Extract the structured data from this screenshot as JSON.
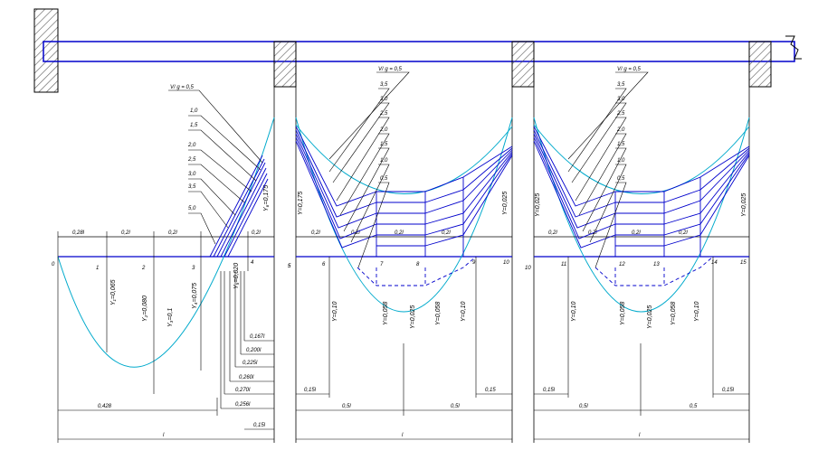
{
  "colors": {
    "structure": "#0000cc",
    "curve": "#00aacc",
    "ink": "#000000",
    "hatch": "#555555"
  },
  "panel1": {
    "top_dims": [
      "0,28l",
      "0,2l",
      "0,2l",
      "0,2l"
    ],
    "nodes": [
      "0",
      "1",
      "2",
      "3",
      "4",
      "5"
    ],
    "vertical_labels": [
      "Y₁=0,065",
      "Y₂=0,080",
      "Y₃=0,1",
      "Y₄=0,075",
      "Y₅=0,020",
      "Y₆=0,175"
    ],
    "fan_title": "V/ g = 0,5",
    "fan_values": [
      "1,0",
      "1,5",
      "2,0",
      "2,5",
      "3,0",
      "3,5",
      "5,0"
    ],
    "right_dims": [
      "0,167l",
      "0,200l",
      "0,225l",
      "0,260l",
      "0,270l",
      "0,256l",
      "0,15l"
    ],
    "bottom_dims": [
      "0,428",
      "l"
    ]
  },
  "panel2": {
    "top_dims": [
      "0,2l",
      "0,2l",
      "0,2l",
      "0,2l"
    ],
    "nodes": [
      "5",
      "6",
      "7",
      "8",
      "9",
      "10"
    ],
    "vertical_labels": [
      "Y=0,175",
      "Y=0,10",
      "Y=0,058",
      "Y=0,025",
      "Y=0,058",
      "Y=0,10",
      "Y=0,025"
    ],
    "fan_title": "V/ g = 0,5",
    "fan_values": [
      "3,5",
      "3,0",
      "2,5",
      "2,0",
      "1,5",
      "1,0",
      "0,5"
    ],
    "bottom_dims": [
      "0,15l",
      "0,15",
      "0,5l",
      "0,5l",
      "l"
    ]
  },
  "panel3": {
    "top_dims": [
      "0,2l",
      "0,2l",
      "0,2l",
      "0,2l"
    ],
    "nodes": [
      "10",
      "11",
      "12",
      "13",
      "14",
      "15"
    ],
    "vertical_labels": [
      "Y=0,025",
      "Y=0,10",
      "Y=0,058",
      "Y=0,025",
      "Y=0,058",
      "Y=0,10",
      "Y=0,025"
    ],
    "fan_title": "V/ g = 0,5",
    "fan_values": [
      "3,5",
      "3,0",
      "2,5",
      "2,0",
      "1,5",
      "1,0",
      "0,5"
    ],
    "bottom_dims": [
      "0,15l",
      "0,15l",
      "0,5l",
      "0,5",
      "l"
    ]
  }
}
